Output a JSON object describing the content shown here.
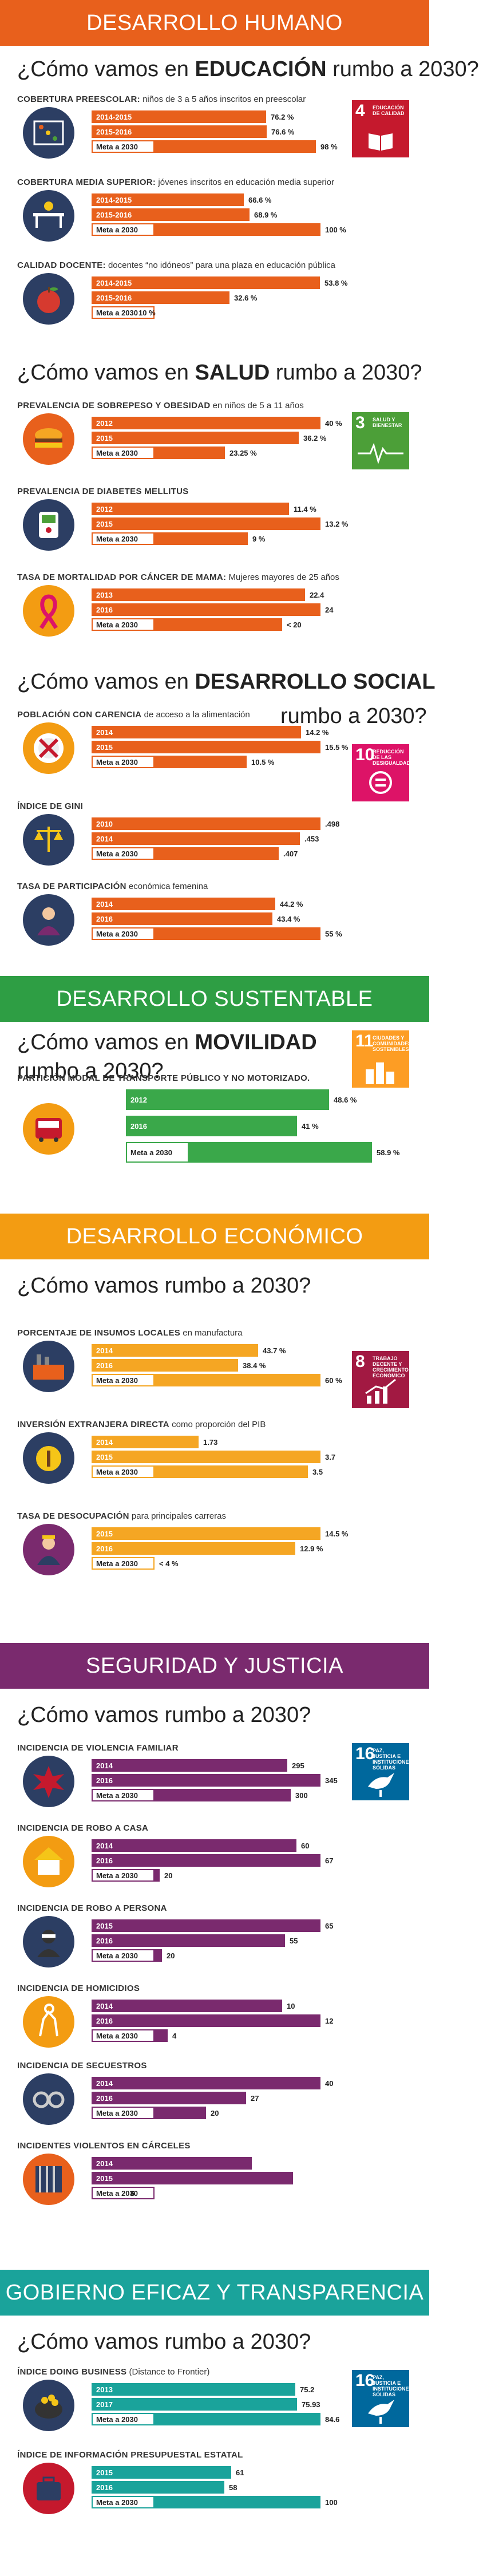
{
  "banners": {
    "humano": "DESARROLLO HUMANO",
    "sustentable": "DESARROLLO SUSTENTABLE",
    "economico": "DESARROLLO ECONÓMICO",
    "seguridad": "SEGURIDAD Y JUSTICIA",
    "gobierno": "GOBIERNO EFICAZ Y TRANSPARENCIA"
  },
  "questions": {
    "educacion": {
      "pre": "¿Cómo vamos en ",
      "bold": "EDUCACIÓN",
      "post": " rumbo a 2030?"
    },
    "salud": {
      "pre": "¿Cómo vamos en ",
      "bold": "SALUD",
      "post": " rumbo a 2030?"
    },
    "social": {
      "pre": "¿Cómo vamos en ",
      "bold": "DESARROLLO SOCIAL",
      "post": ""
    },
    "social_tail": "rumbo a 2030?",
    "movilidad": {
      "pre": "¿Cómo vamos en ",
      "bold": "MOVILIDAD",
      "post": ""
    },
    "movilidad_tail": "rumbo a 2030?",
    "economico": "¿Cómo vamos rumbo a 2030?",
    "seguridad": "¿Cómo vamos rumbo a 2030?",
    "gobierno": "¿Cómo vamos rumbo a 2030?"
  },
  "sdg": {
    "s4": {
      "num": "4",
      "text": "EDUCACIÓN DE CALIDAD",
      "color": "#c5192d"
    },
    "s3": {
      "num": "3",
      "text": "SALUD Y BIENESTAR",
      "color": "#4c9f38"
    },
    "s10": {
      "num": "10",
      "text": "REDUCCIÓN DE LAS DESIGUALDADES",
      "color": "#dd1367"
    },
    "s11": {
      "num": "11",
      "text": "CIUDADES Y COMUNIDADES SOSTENIBLES",
      "color": "#fd9d24"
    },
    "s8": {
      "num": "8",
      "text": "TRABAJO DECENTE Y CRECIMIENTO ECONÓMICO",
      "color": "#a21942"
    },
    "s16a": {
      "num": "16",
      "text": "PAZ, JUSTICIA E INSTITUCIONES SÓLIDAS",
      "color": "#00689d"
    },
    "s16b": {
      "num": "16",
      "text": "PAZ, JUSTICIA E INSTITUCIONES SÓLIDAS",
      "color": "#00689d"
    }
  },
  "colors": {
    "humano_banner": "#e8601c",
    "humano_bar": "#e8601c",
    "sustentable_banner": "#2e9e44",
    "sustentable_bar": "#3aa84a",
    "economico_banner": "#f39c12",
    "economico_bar": "#f5a623",
    "seguridad_banner": "#7a2a6e",
    "seguridad_bar": "#7a2a6e",
    "gobierno_banner": "#1aa39b",
    "gobierno_bar": "#1aa39b"
  },
  "chart_data": [
    {
      "type": "bar",
      "id": "preescolar",
      "title_cap": "COBERTURA PREESCOLAR:",
      "title_rest": " niños de 3 a 5 años inscritos en preescolar",
      "categories": [
        "2014-2015",
        "2015-2016",
        "Meta a 2030"
      ],
      "values": [
        76.2,
        76.6,
        98
      ],
      "labels": [
        "76.2 %",
        "76.6 %",
        "98 %"
      ],
      "max": 100
    },
    {
      "type": "bar",
      "id": "media",
      "title_cap": "COBERTURA MEDIA SUPERIOR:",
      "title_rest": " jóvenes inscritos en educación media superior",
      "categories": [
        "2014-2015",
        "2015-2016",
        "Meta a 2030"
      ],
      "values": [
        66.6,
        68.9,
        100
      ],
      "labels": [
        "66.6 %",
        "68.9 %",
        "100 %"
      ],
      "max": 100
    },
    {
      "type": "bar",
      "id": "docente",
      "title_cap": "CALIDAD DOCENTE:",
      "title_rest": " docentes “no idóneos” para una plaza en educación pública",
      "categories": [
        "2014-2015",
        "2015-2016",
        "Meta a 2030"
      ],
      "values": [
        53.8,
        32.6,
        10
      ],
      "labels": [
        "53.8 %",
        "32.6 %",
        "10 %"
      ],
      "max": 54
    },
    {
      "type": "bar",
      "id": "sobrepeso",
      "title_cap": "PREVALENCIA DE SOBREPESO Y OBESIDAD",
      "title_rest": " en niños de 5 a 11 años",
      "categories": [
        "2012",
        "2015",
        "Meta a 2030"
      ],
      "values": [
        40,
        36.2,
        23.25
      ],
      "labels": [
        "40 %",
        "36.2 %",
        "23.25 %"
      ],
      "max": 40
    },
    {
      "type": "bar",
      "id": "diabetes",
      "title_cap": "PREVALENCIA DE DIABETES MELLITUS",
      "title_rest": "",
      "categories": [
        "2012",
        "2015",
        "Meta a 2030"
      ],
      "values": [
        11.4,
        13.2,
        9
      ],
      "labels": [
        "11.4 %",
        "13.2 %",
        "9 %"
      ],
      "max": 13.2
    },
    {
      "type": "bar",
      "id": "cancer",
      "title_cap": "TASA DE MORTALIDAD POR CÁNCER DE MAMA:",
      "title_rest": " Mujeres mayores de 25 años",
      "categories": [
        "2013",
        "2016",
        "Meta a 2030"
      ],
      "values": [
        22.4,
        24,
        20
      ],
      "labels": [
        "22.4",
        "24",
        "< 20"
      ],
      "max": 24
    },
    {
      "type": "bar",
      "id": "carencia",
      "title_cap": "POBLACIÓN CON CARENCIA",
      "title_rest": " de acceso a la alimentación",
      "categories": [
        "2014",
        "2015",
        "Meta a 2030"
      ],
      "values": [
        14.2,
        15.5,
        10.5
      ],
      "labels": [
        "14.2 %",
        "15.5 %",
        "10.5 %"
      ],
      "max": 15.5
    },
    {
      "type": "bar",
      "id": "gini",
      "title_cap": "ÍNDICE DE GINI",
      "title_rest": "",
      "categories": [
        "2010",
        "2014",
        "Meta a 2030"
      ],
      "values": [
        0.498,
        0.453,
        0.407
      ],
      "labels": [
        ".498",
        ".453",
        ".407"
      ],
      "max": 0.498
    },
    {
      "type": "bar",
      "id": "participacion",
      "title_cap": "TASA DE PARTICIPACIÓN",
      "title_rest": " económica femenina",
      "categories": [
        "2014",
        "2016",
        "Meta a 2030"
      ],
      "values": [
        44.2,
        43.4,
        55
      ],
      "labels": [
        "44.2 %",
        "43.4 %",
        "55 %"
      ],
      "max": 55
    },
    {
      "type": "bar",
      "id": "movilidad",
      "title_cap": "PARTICIÓN MODAL DE TRANSPORTE PÚBLICO Y NO MOTORIZADO.",
      "title_rest": "",
      "categories": [
        "2012",
        "2016",
        "Meta a 2030"
      ],
      "values": [
        48.6,
        41,
        58.9
      ],
      "labels": [
        "48.6 %",
        "41 %",
        "58.9 %"
      ],
      "max": 58.9
    },
    {
      "type": "bar",
      "id": "insumos",
      "title_cap": "PORCENTAJE DE INSUMOS LOCALES",
      "title_rest": " en manufactura",
      "categories": [
        "2014",
        "2016",
        "Meta a 2030"
      ],
      "values": [
        43.7,
        38.4,
        60
      ],
      "labels": [
        "43.7 %",
        "38.4 %",
        "60 %"
      ],
      "max": 60
    },
    {
      "type": "bar",
      "id": "inversion",
      "title_cap": "INVERSIÓN EXTRANJERA DIRECTA",
      "title_rest": " como proporción del PIB",
      "categories": [
        "2014",
        "2015",
        "Meta a 2030"
      ],
      "values": [
        1.73,
        3.7,
        3.5
      ],
      "labels": [
        "1.73",
        "3.7",
        "3.5"
      ],
      "max": 3.7
    },
    {
      "type": "bar",
      "id": "desocupacion",
      "title_cap": "TASA DE DESOCUPACIÓN",
      "title_rest": " para principales carreras",
      "categories": [
        "2015",
        "2016",
        "Meta a 2030"
      ],
      "values": [
        14.5,
        12.9,
        4
      ],
      "labels": [
        "14.5 %",
        "12.9 %",
        "< 4 %"
      ],
      "max": 14.5
    },
    {
      "type": "bar",
      "id": "violencia",
      "title_cap": "INCIDENCIA DE VIOLENCIA FAMILIAR",
      "title_rest": "",
      "categories": [
        "2014",
        "2016",
        "Meta a 2030"
      ],
      "values": [
        295,
        345,
        300
      ],
      "labels": [
        "295",
        "345",
        "300"
      ],
      "max": 345
    },
    {
      "type": "bar",
      "id": "robocasa",
      "title_cap": "INCIDENCIA DE ROBO A CASA",
      "title_rest": "",
      "categories": [
        "2014",
        "2016",
        "Meta a 2030"
      ],
      "values": [
        60,
        67,
        20
      ],
      "labels": [
        "60",
        "67",
        "20"
      ],
      "max": 67
    },
    {
      "type": "bar",
      "id": "robopersona",
      "title_cap": "INCIDENCIA DE ROBO A PERSONA",
      "title_rest": "",
      "categories": [
        "2015",
        "2016",
        "Meta a 2030"
      ],
      "values": [
        65,
        55,
        20
      ],
      "labels": [
        "65",
        "55",
        "20"
      ],
      "max": 65
    },
    {
      "type": "bar",
      "id": "homicidios",
      "title_cap": "INCIDENCIA DE HOMICIDIOS",
      "title_rest": "",
      "categories": [
        "2014",
        "2016",
        "Meta a 2030"
      ],
      "values": [
        10,
        12,
        4
      ],
      "labels": [
        "10",
        "12",
        "4"
      ],
      "max": 12
    },
    {
      "type": "bar",
      "id": "secuestros",
      "title_cap": "INCIDENCIA DE SECUESTROS",
      "title_rest": "",
      "categories": [
        "2014",
        "2016",
        "Meta a 2030"
      ],
      "values": [
        40,
        27,
        20
      ],
      "labels": [
        "40",
        "27",
        "20"
      ],
      "max": 40
    },
    {
      "type": "bar",
      "id": "carceles",
      "title_cap": "INCIDENTES VIOLENTOS EN CÁRCELES",
      "title_rest": "",
      "categories": [
        "2014",
        "2015",
        "Meta a 2030"
      ],
      "values": [
        null,
        null,
        6
      ],
      "labels": [
        "",
        "",
        "6"
      ],
      "widths_pct": [
        0.7,
        0.88,
        0.1
      ],
      "max": 100
    },
    {
      "type": "bar",
      "id": "doing",
      "title_cap": "ÍNDICE DOING BUSINESS",
      "title_rest": " (Distance to Frontier)",
      "categories": [
        "2013",
        "2017",
        "Meta a 2030"
      ],
      "values": [
        75.2,
        75.93,
        84.6
      ],
      "labels": [
        "75.2",
        "75.93",
        "84.6"
      ],
      "max": 84.6
    },
    {
      "type": "bar",
      "id": "presupuestal",
      "title_cap": "ÍNDICE DE INFORMACIÓN PRESUPUESTAL ESTATAL",
      "title_rest": "",
      "categories": [
        "2015",
        "2016",
        "Meta a 2030"
      ],
      "values": [
        61,
        58,
        100
      ],
      "labels": [
        "61",
        "58",
        "100"
      ],
      "max": 100
    }
  ]
}
